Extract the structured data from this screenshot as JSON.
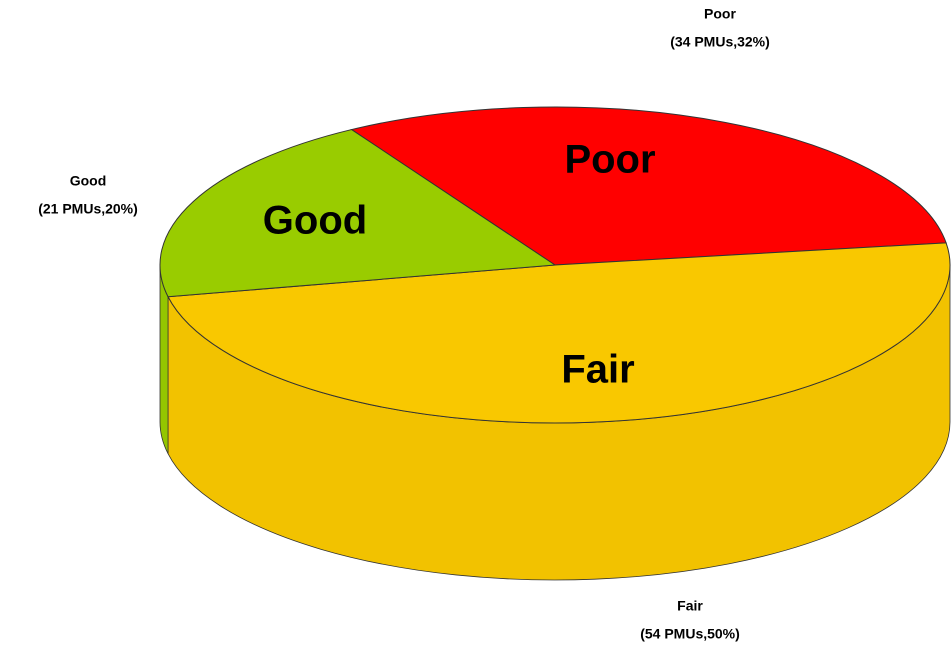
{
  "chart_data": {
    "type": "pie3d",
    "categories": [
      "Poor",
      "Fair",
      "Good"
    ],
    "values": [
      32,
      50,
      20
    ],
    "counts": [
      34,
      54,
      21
    ],
    "value_labels": [
      "(34 PMUs,32%)",
      "(54 PMUs,50%)",
      "(21 PMUs,20%)"
    ],
    "colors": [
      "#ff0000",
      "#f9c800",
      "#99cc00"
    ]
  }
}
